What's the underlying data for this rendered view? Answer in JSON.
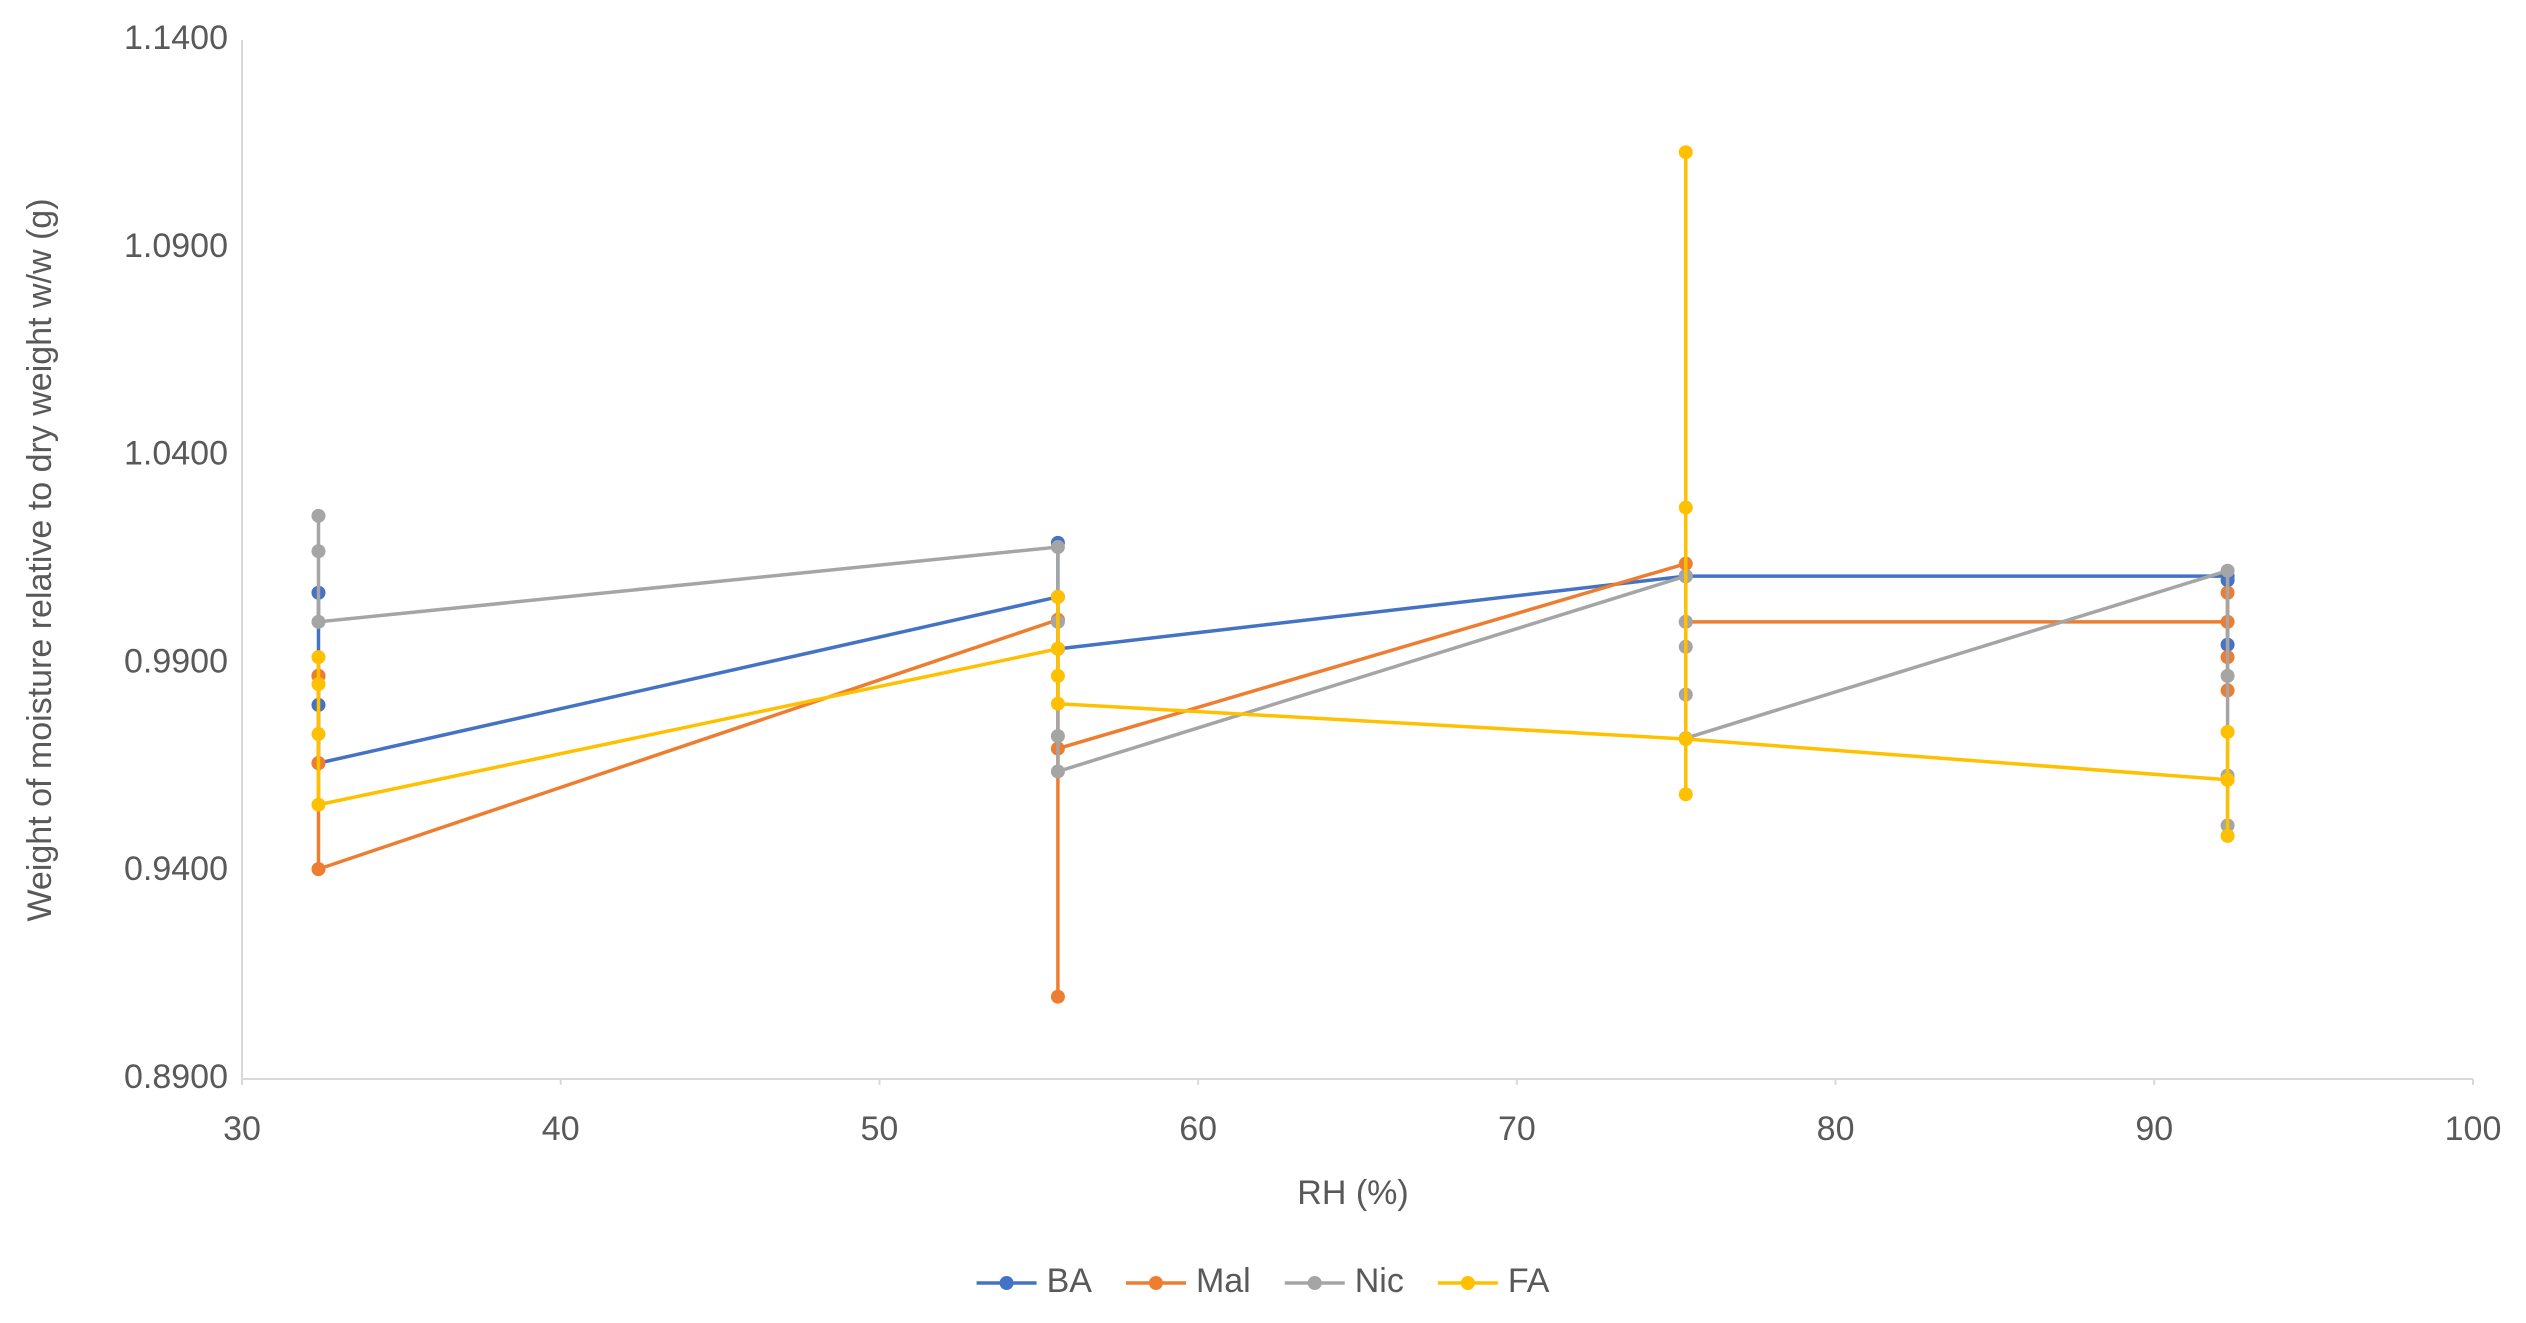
{
  "chart_data": {
    "type": "scatter-line",
    "x_label": "RH (%)",
    "y_label": "Weight of moisture relative to dry weight w/w (g)",
    "xlim": [
      30,
      100
    ],
    "xticks": [
      30,
      40,
      50,
      60,
      70,
      80,
      90,
      100
    ],
    "ylim": [
      0.89,
      1.14
    ],
    "yticks": [
      {
        "value": 0.89,
        "label": "0.8900"
      },
      {
        "value": 0.94,
        "label": "0.9400"
      },
      {
        "value": 0.99,
        "label": "0.9900"
      },
      {
        "value": 1.04,
        "label": "1.0400"
      },
      {
        "value": 1.09,
        "label": "1.0900"
      },
      {
        "value": 1.14,
        "label": "1.1400"
      }
    ],
    "grid": false,
    "legend": "bottom",
    "series": [
      {
        "name": "BA",
        "color": "#4472c4",
        "x": [
          32.4,
          32.4,
          32.4,
          32.4,
          55.6,
          55.6,
          55.6,
          75.3,
          75.3,
          92.3,
          92.3,
          92.3
        ],
        "values": [
          1.007,
          0.987,
          0.98,
          0.966,
          1.006,
          1.019,
          0.9935,
          1.011,
          1.011,
          1.011,
          0.9945,
          1.01
        ]
      },
      {
        "name": "Mal",
        "color": "#ed7d31",
        "x": [
          32.4,
          32.4,
          32.4,
          55.6,
          55.6,
          55.6,
          75.3,
          75.3,
          92.3,
          92.3,
          92.3,
          92.3
        ],
        "values": [
          0.987,
          0.966,
          0.9405,
          1.0005,
          0.9098,
          0.9695,
          1.014,
          1.0,
          1.0,
          0.9915,
          0.9835,
          1.007
        ]
      },
      {
        "name": "Nic",
        "color": "#a5a5a5",
        "x": [
          32.4,
          32.4,
          32.4,
          55.6,
          55.6,
          55.6,
          55.6,
          75.3,
          75.3,
          75.3,
          75.3,
          75.3,
          92.3,
          92.3,
          92.3,
          92.3
        ],
        "values": [
          1.0255,
          1.017,
          1.0,
          1.018,
          1.0,
          0.9725,
          0.964,
          1.011,
          1.0,
          0.994,
          0.9825,
          0.972,
          1.0123,
          0.987,
          0.951,
          0.963
        ]
      },
      {
        "name": "FA",
        "color": "#ffc000",
        "x": [
          32.4,
          32.4,
          32.4,
          32.4,
          55.6,
          55.6,
          55.6,
          55.6,
          75.3,
          75.3,
          75.3,
          75.3,
          75.3,
          92.3,
          92.3,
          92.3,
          92.3
        ],
        "values": [
          0.9915,
          0.985,
          0.973,
          0.956,
          0.9935,
          1.006,
          0.987,
          0.9803,
          0.9718,
          1.113,
          1.0275,
          0.9585,
          0.9718,
          0.962,
          0.9735,
          0.9485,
          0.962
        ]
      }
    ]
  }
}
